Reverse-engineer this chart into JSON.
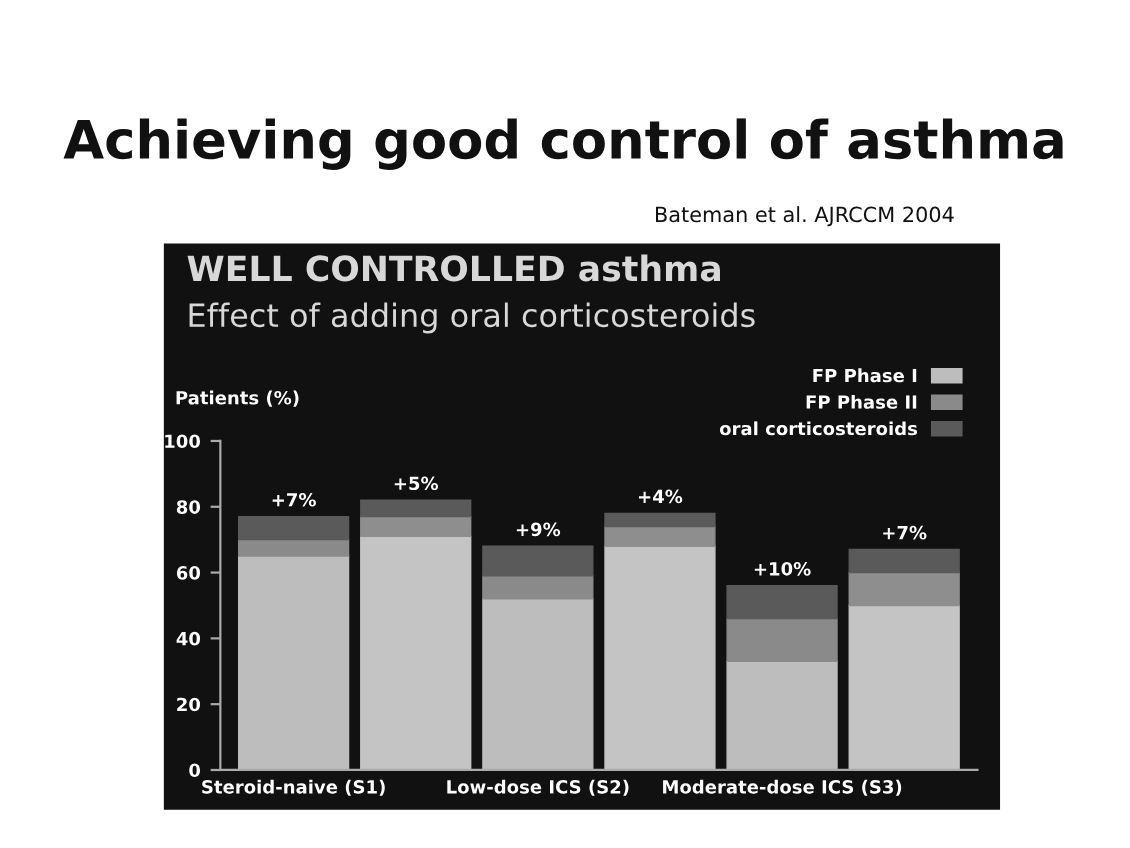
{
  "chart_data": {
    "type": "bar",
    "stacked": true,
    "title": "Achieving good control of asthma",
    "subtitle": "WELL CONTROLLED asthma",
    "annotations": [
      "Bateman et al. AJRCCM 2004",
      "Effect of adding oral corticosteroids"
    ],
    "ylabel": "Patients (%)",
    "categories": [
      "Steroid-naive (S1)",
      null,
      "Low-dose ICS (S2)",
      null,
      "Moderate-dose ICS (S3)",
      null
    ],
    "series": [
      {
        "name": "FP Phase I",
        "color": "#bdbdbd",
        "values": [
          65,
          null,
          52,
          null,
          33,
          null
        ]
      },
      {
        "color": "#c4c4c4",
        "values": [
          null,
          71,
          null,
          68,
          null,
          50
        ]
      },
      {
        "name": "FP Phase II",
        "color": "#8a8a8a",
        "values": [
          5,
          null,
          7,
          null,
          13,
          null
        ]
      },
      {
        "color": "#8e8e8e",
        "values": [
          null,
          6,
          null,
          6,
          null,
          10
        ]
      },
      {
        "name": "oral corticosteroids",
        "color": "#5a5a5a",
        "values": [
          7,
          5,
          9,
          4,
          10,
          7
        ],
        "value_labels": [
          "+7%",
          "+5%",
          "+9%",
          "+4%",
          "+10%",
          "+7%"
        ]
      }
    ],
    "ylim": [
      0,
      100
    ],
    "yticks": [
      0,
      20,
      40,
      60,
      80,
      100
    ],
    "grid": false,
    "legend": "top right"
  }
}
